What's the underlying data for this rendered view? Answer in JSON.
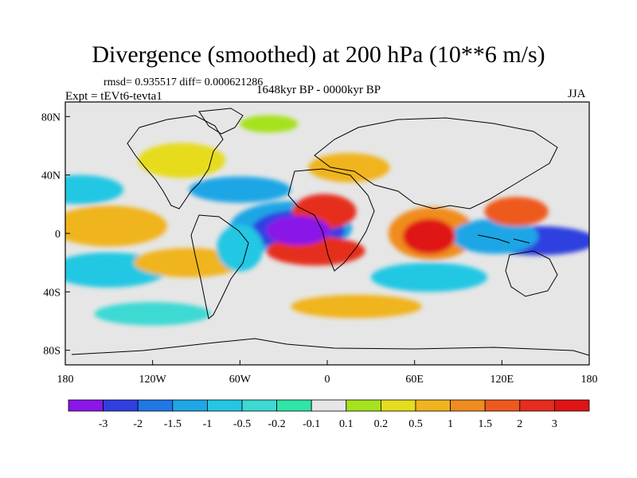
{
  "title": "Divergence (smoothed) at 200 hPa (10**6 m/s)",
  "stats": "rmsd= 0.935517 diff= 0.000621286",
  "experiment": "Expt = tEVt6-tevta1",
  "period": "1648kyr BP - 0000kyr BP",
  "season": "JJA",
  "colors": {
    "frame": "#000000",
    "missing_background": "#e6e6e6",
    "coastline": "#000000"
  },
  "axes": {
    "x_ticks": [
      "180",
      "120W",
      "60W",
      "0",
      "60E",
      "120E",
      "180"
    ],
    "y_ticks": [
      "80N",
      "40N",
      "0",
      "40S",
      "80S"
    ],
    "lon_range": [
      -180,
      180
    ],
    "lat_range": [
      -90,
      90
    ]
  },
  "colorbar": {
    "labels": [
      "-3",
      "-2",
      "-1.5",
      "-1",
      "-0.5",
      "-0.2",
      "-0.1",
      "0.1",
      "0.2",
      "0.5",
      "1",
      "1.5",
      "2",
      "3"
    ],
    "colors": [
      "#8a16e8",
      "#2f3fe0",
      "#1f78e6",
      "#1ea6e6",
      "#23c7e3",
      "#3ed9d3",
      "#2ee6a6",
      "#e6e6e6",
      "#a6e21e",
      "#e6dc1e",
      "#f0b41e",
      "#f08c1e",
      "#ee5a1e",
      "#e62d1e",
      "#e01414"
    ]
  },
  "map_features": [
    {
      "name": "neg-atlantic-min",
      "lon": -20,
      "lat": 2,
      "rx": 22,
      "ry": 10,
      "level": 0
    },
    {
      "name": "neg-atlantic-core",
      "lon": -20,
      "lat": 2,
      "rx": 32,
      "ry": 14,
      "level": 1
    },
    {
      "name": "neg-atlantic-halo",
      "lon": -25,
      "lat": 4,
      "rx": 42,
      "ry": 18,
      "level": 3
    },
    {
      "name": "pos-n-africa",
      "lon": -2,
      "lat": 15,
      "rx": 22,
      "ry": 12,
      "level": 13
    },
    {
      "name": "pos-s-atlantic",
      "lon": -8,
      "lat": -12,
      "rx": 34,
      "ry": 10,
      "level": 13
    },
    {
      "name": "pos-indian-ocean",
      "lon": 70,
      "lat": -2,
      "rx": 18,
      "ry": 12,
      "level": 14
    },
    {
      "name": "pos-indian-halo",
      "lon": 72,
      "lat": 0,
      "rx": 30,
      "ry": 18,
      "level": 11
    },
    {
      "name": "neg-w-pacific",
      "lon": 145,
      "lat": -5,
      "rx": 40,
      "ry": 10,
      "level": 1
    },
    {
      "name": "neg-indonesia",
      "lon": 115,
      "lat": -2,
      "rx": 30,
      "ry": 12,
      "level": 3
    },
    {
      "name": "pos-se-asia",
      "lon": 130,
      "lat": 15,
      "rx": 22,
      "ry": 10,
      "level": 12
    },
    {
      "name": "pos-e-pacific",
      "lon": -150,
      "lat": 5,
      "rx": 40,
      "ry": 14,
      "level": 10
    },
    {
      "name": "pos-s-pacific",
      "lon": -95,
      "lat": -20,
      "rx": 38,
      "ry": 10,
      "level": 10
    },
    {
      "name": "neg-s-pacific",
      "lon": -150,
      "lat": -25,
      "rx": 40,
      "ry": 12,
      "level": 4
    },
    {
      "name": "neg-n-pacific",
      "lon": -170,
      "lat": 30,
      "rx": 30,
      "ry": 10,
      "level": 4
    },
    {
      "name": "pos-n-america",
      "lon": -100,
      "lat": 50,
      "rx": 30,
      "ry": 12,
      "level": 9
    },
    {
      "name": "neg-n-atlantic",
      "lon": -60,
      "lat": 30,
      "rx": 35,
      "ry": 9,
      "level": 3
    },
    {
      "name": "pos-europe",
      "lon": 15,
      "lat": 45,
      "rx": 28,
      "ry": 10,
      "level": 10
    },
    {
      "name": "neg-s-indian",
      "lon": 70,
      "lat": -30,
      "rx": 40,
      "ry": 10,
      "level": 4
    },
    {
      "name": "neg-s-america",
      "lon": -60,
      "lat": -10,
      "rx": 16,
      "ry": 16,
      "level": 4
    },
    {
      "name": "pos-s-ocean",
      "lon": 20,
      "lat": -50,
      "rx": 45,
      "ry": 8,
      "level": 10
    },
    {
      "name": "neg-s-ocean",
      "lon": -120,
      "lat": -55,
      "rx": 40,
      "ry": 8,
      "level": 5
    },
    {
      "name": "pos-arctic",
      "lon": -40,
      "lat": 75,
      "rx": 20,
      "ry": 6,
      "level": 8
    }
  ]
}
